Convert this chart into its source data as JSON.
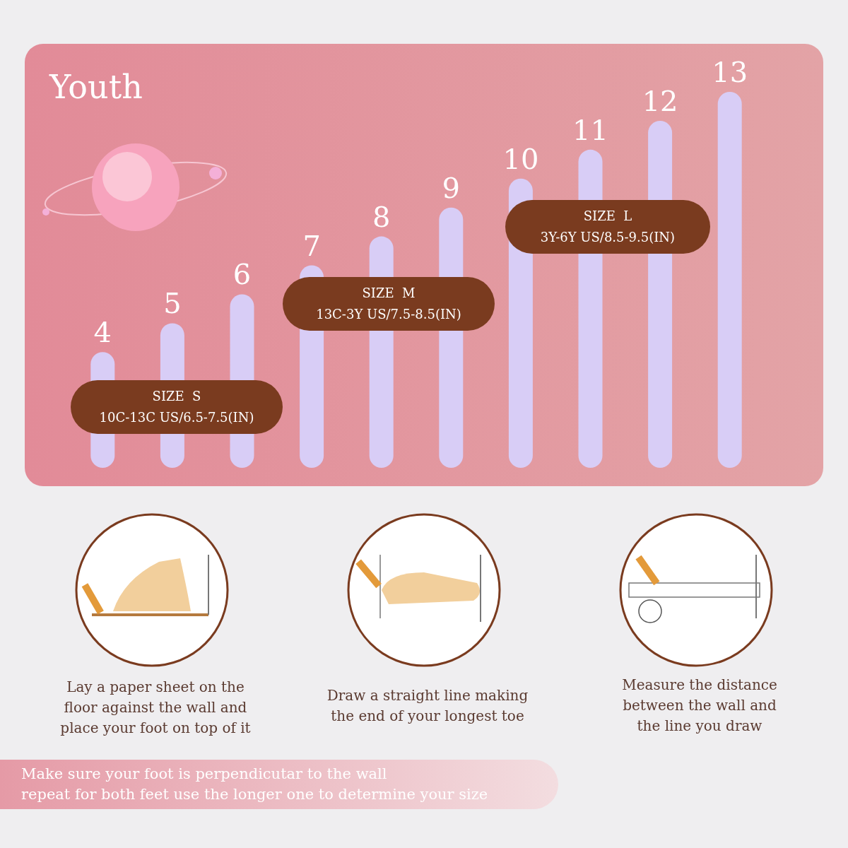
{
  "chart_data": {
    "type": "bar",
    "title": "Youth",
    "data_labels": true,
    "categories": [
      null,
      null,
      null,
      null,
      null,
      null,
      null,
      null,
      null,
      null
    ],
    "values": [
      4,
      5,
      6,
      7,
      8,
      9,
      10,
      11,
      12,
      13
    ],
    "color": "#d8cdf6",
    "annotations": [
      "SIZE  S\n10C-13C US/6.5-7.5(IN)",
      "SIZE  M\n13C-3Y US/7.5-8.5(IN)",
      "SIZE  L\n3Y-6Y US/8.5-9.5(IN)",
      "Lay a paper sheet on the\nfloor against the wall and\nplace your foot on top of it",
      "Draw a straight line making\nthe end of your longest toe",
      "Measure the distance\nbetween the wall and\nthe line you draw",
      "Make sure your foot is perpendicutar to the wall\nrepeat for both feet use the longer one to determine your size"
    ]
  }
}
